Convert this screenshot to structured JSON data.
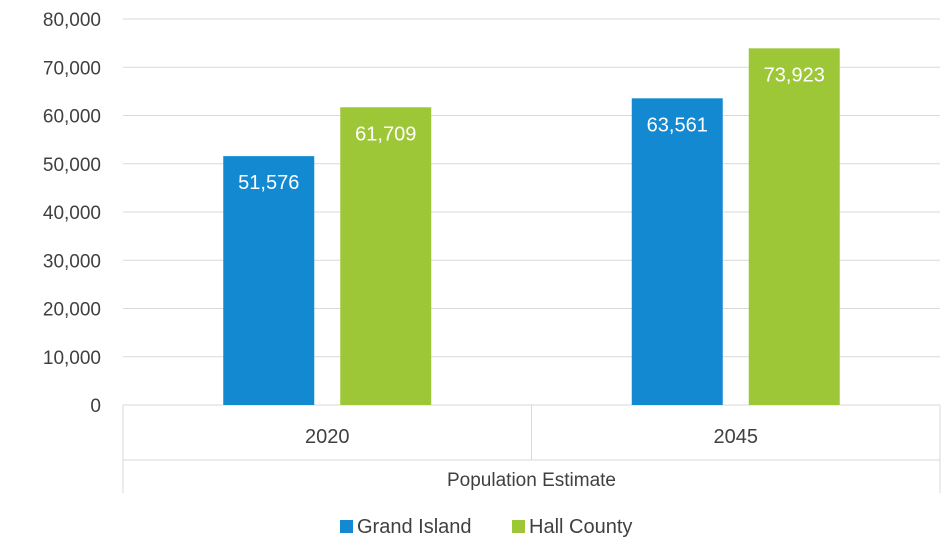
{
  "chart_data": {
    "type": "bar",
    "categories": [
      "2020",
      "2045"
    ],
    "group_label": "Population Estimate",
    "series": [
      {
        "name": "Grand Island",
        "color": "#1289d0",
        "values": [
          51576,
          63561
        ],
        "labels": [
          "51,576",
          "63,561"
        ]
      },
      {
        "name": "Hall County",
        "color": "#9ec738",
        "values": [
          61709,
          73923
        ],
        "labels": [
          "61,709",
          "73,923"
        ]
      }
    ],
    "yticks": [
      "0",
      "10,000",
      "20,000",
      "30,000",
      "40,000",
      "50,000",
      "60,000",
      "70,000",
      "80,000"
    ],
    "ylim": [
      0,
      80000
    ],
    "grid": true,
    "legend_position": "bottom"
  }
}
